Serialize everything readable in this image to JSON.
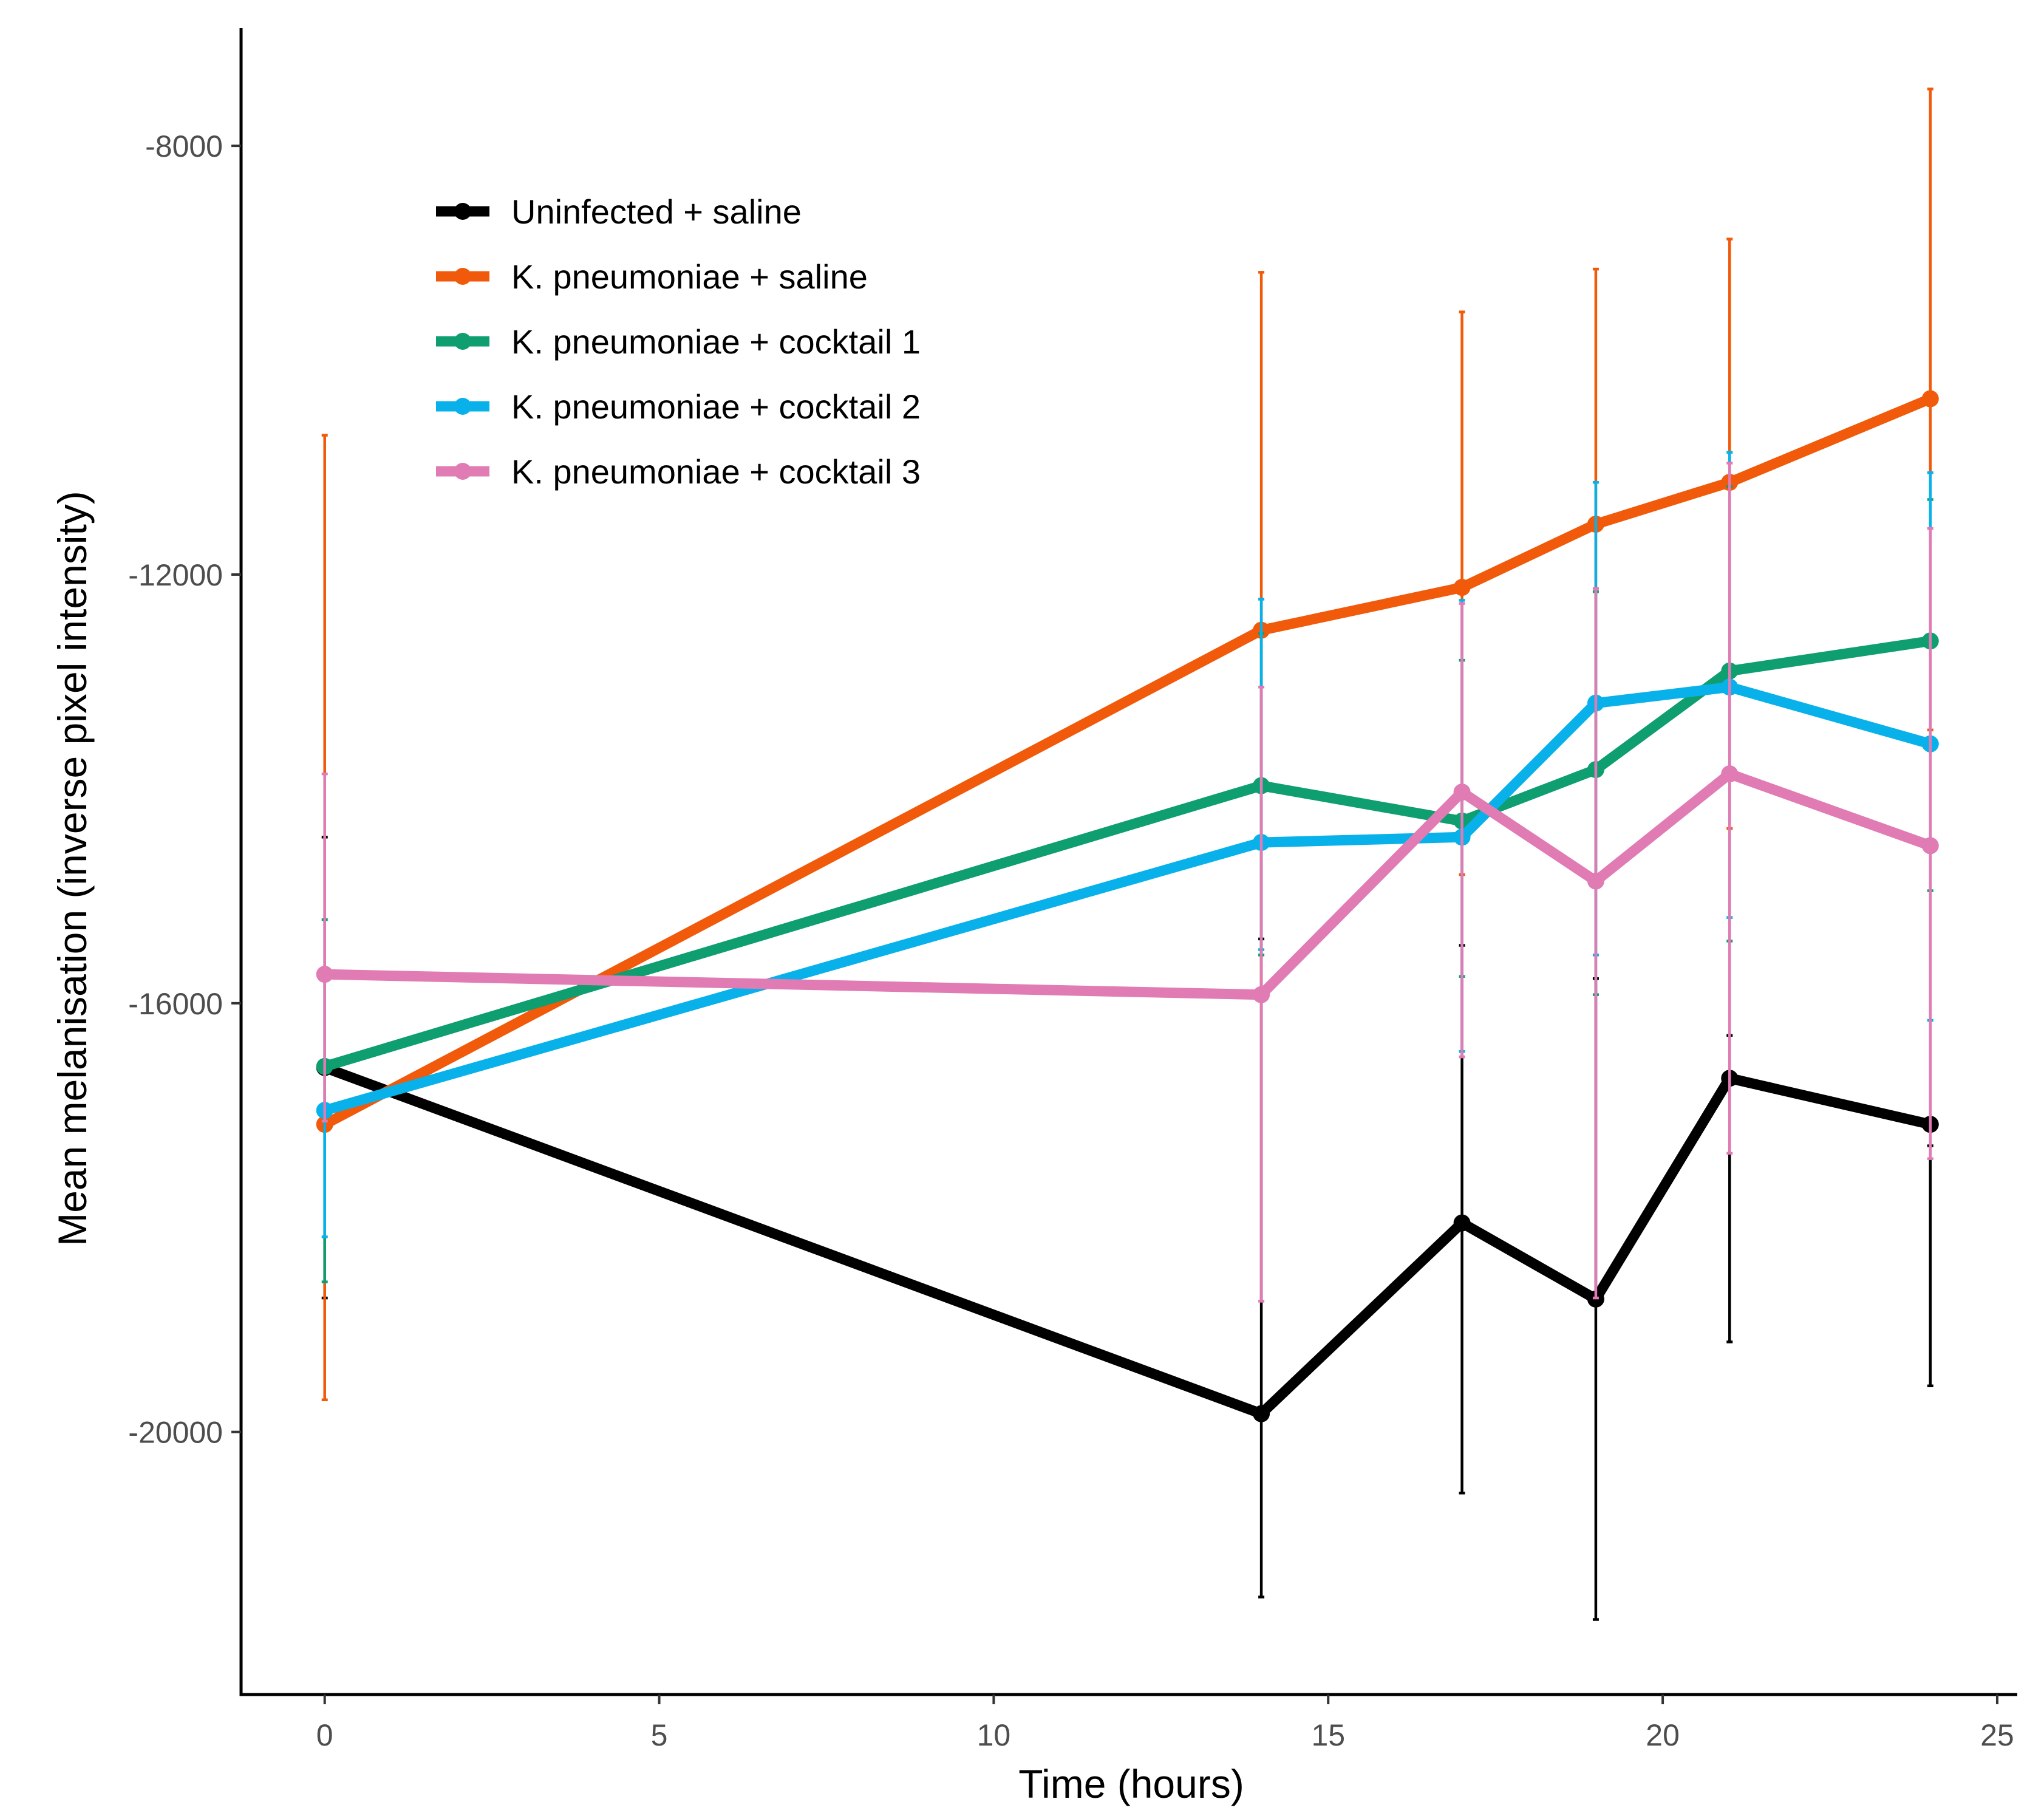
{
  "chart_data": {
    "type": "line",
    "title": "",
    "xlabel": "Time (hours)",
    "ylabel": "Mean melanisation (inverse pixel intensity)",
    "xlim": [
      -1.25,
      25.3
    ],
    "ylim": [
      -22450,
      -6900
    ],
    "x_ticks": [
      0,
      5,
      10,
      15,
      20,
      25
    ],
    "x_tick_labels": [
      "0",
      "5",
      "10",
      "15",
      "20",
      "25"
    ],
    "y_ticks": [
      -20000,
      -16000,
      -12000,
      -8000
    ],
    "y_tick_labels": [
      "-20000",
      "-16000",
      "-12000",
      "-8000"
    ],
    "legend_position": "top-left",
    "x": [
      0,
      14,
      17,
      19,
      21,
      24
    ],
    "series": [
      {
        "name": "Uninfected + saline",
        "color": "#000000",
        "values": [
          -16600,
          -19830,
          -18050,
          -18760,
          -16700,
          -17130
        ],
        "lower": [
          -18750,
          -21540,
          -20570,
          -21750,
          -19160,
          -19570
        ],
        "upper": [
          -14450,
          -15400,
          -15460,
          -15770,
          -16300,
          -17330
        ]
      },
      {
        "name": "K. pneumoniae + saline",
        "color": "#F05A0A",
        "values": [
          -17130,
          -12520,
          -12120,
          -11530,
          -11140,
          -10360
        ],
        "lower": [
          -19700,
          -15950,
          -14800,
          -14870,
          -14370,
          -13450
        ],
        "upper": [
          -10700,
          -9180,
          -9550,
          -9150,
          -8870,
          -7470
        ]
      },
      {
        "name": "K. pneumoniae + cocktail 1",
        "color": "#0E9E70",
        "values": [
          -16590,
          -13970,
          -14300,
          -13820,
          -12900,
          -12620
        ],
        "lower": [
          -18600,
          -15550,
          -15750,
          -15920,
          -15420,
          -14950
        ],
        "upper": [
          -15220,
          -12550,
          -12800,
          -12160,
          -11180,
          -11300
        ]
      },
      {
        "name": "K. pneumoniae + cocktail 2",
        "color": "#08B1E9",
        "values": [
          -17000,
          -14500,
          -14450,
          -13200,
          -13050,
          -13580
        ],
        "lower": [
          -18180,
          -15500,
          -16450,
          -15550,
          -15200,
          -16160
        ],
        "upper": [
          -15670,
          -12230,
          -12240,
          -11140,
          -10860,
          -11050
        ]
      },
      {
        "name": "K. pneumoniae + cocktail 3",
        "color": "#E07BB4",
        "values": [
          -15730,
          -15920,
          -14030,
          -14860,
          -13860,
          -14530
        ],
        "lower": [
          -17100,
          -18780,
          -16500,
          -18750,
          -17400,
          -17450
        ],
        "upper": [
          -13860,
          -13050,
          -12270,
          -12130,
          -10960,
          -11570
        ]
      }
    ]
  }
}
